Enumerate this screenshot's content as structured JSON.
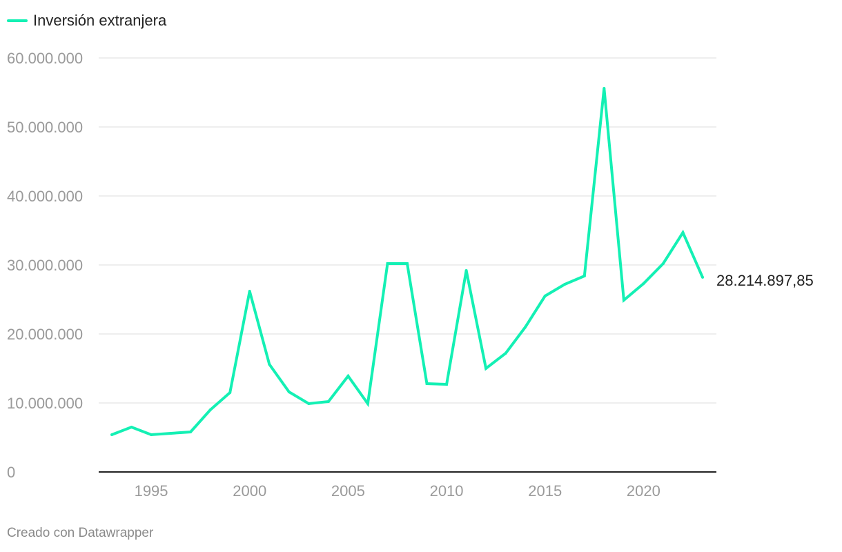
{
  "legend": {
    "label": "Inversión extranjera"
  },
  "footer": {
    "credit": "Creado con Datawrapper"
  },
  "chart_data": {
    "type": "line",
    "title": "",
    "xlabel": "",
    "ylabel": "",
    "xlim": [
      1993,
      2023
    ],
    "ylim": [
      0,
      60000000
    ],
    "grid": true,
    "legend_position": "top-left",
    "x_ticks": [
      1995,
      2000,
      2005,
      2010,
      2015,
      2020
    ],
    "y_ticks": [
      0,
      10000000,
      20000000,
      30000000,
      40000000,
      50000000,
      60000000
    ],
    "y_tick_labels": [
      "0",
      "10.000.000",
      "20.000.000",
      "30.000.000",
      "40.000.000",
      "50.000.000",
      "60.000.000"
    ],
    "series": [
      {
        "name": "Inversión extranjera",
        "color": "#14f0b4",
        "x": [
          1993,
          1994,
          1995,
          1996,
          1997,
          1998,
          1999,
          2000,
          2001,
          2002,
          2003,
          2004,
          2005,
          2006,
          2007,
          2008,
          2009,
          2010,
          2011,
          2012,
          2013,
          2014,
          2015,
          2016,
          2017,
          2018,
          2019,
          2020,
          2021,
          2022,
          2023
        ],
        "values": [
          5400000,
          6500000,
          5400000,
          5600000,
          5800000,
          9000000,
          11500000,
          26200000,
          15600000,
          11600000,
          9900000,
          10200000,
          13900000,
          9900000,
          30200000,
          30200000,
          12800000,
          12700000,
          29200000,
          15000000,
          17200000,
          21000000,
          25500000,
          27200000,
          28400000,
          55600000,
          24900000,
          27300000,
          30200000,
          34700000,
          28214897.85
        ]
      }
    ],
    "end_label": "28.214.897,85"
  }
}
